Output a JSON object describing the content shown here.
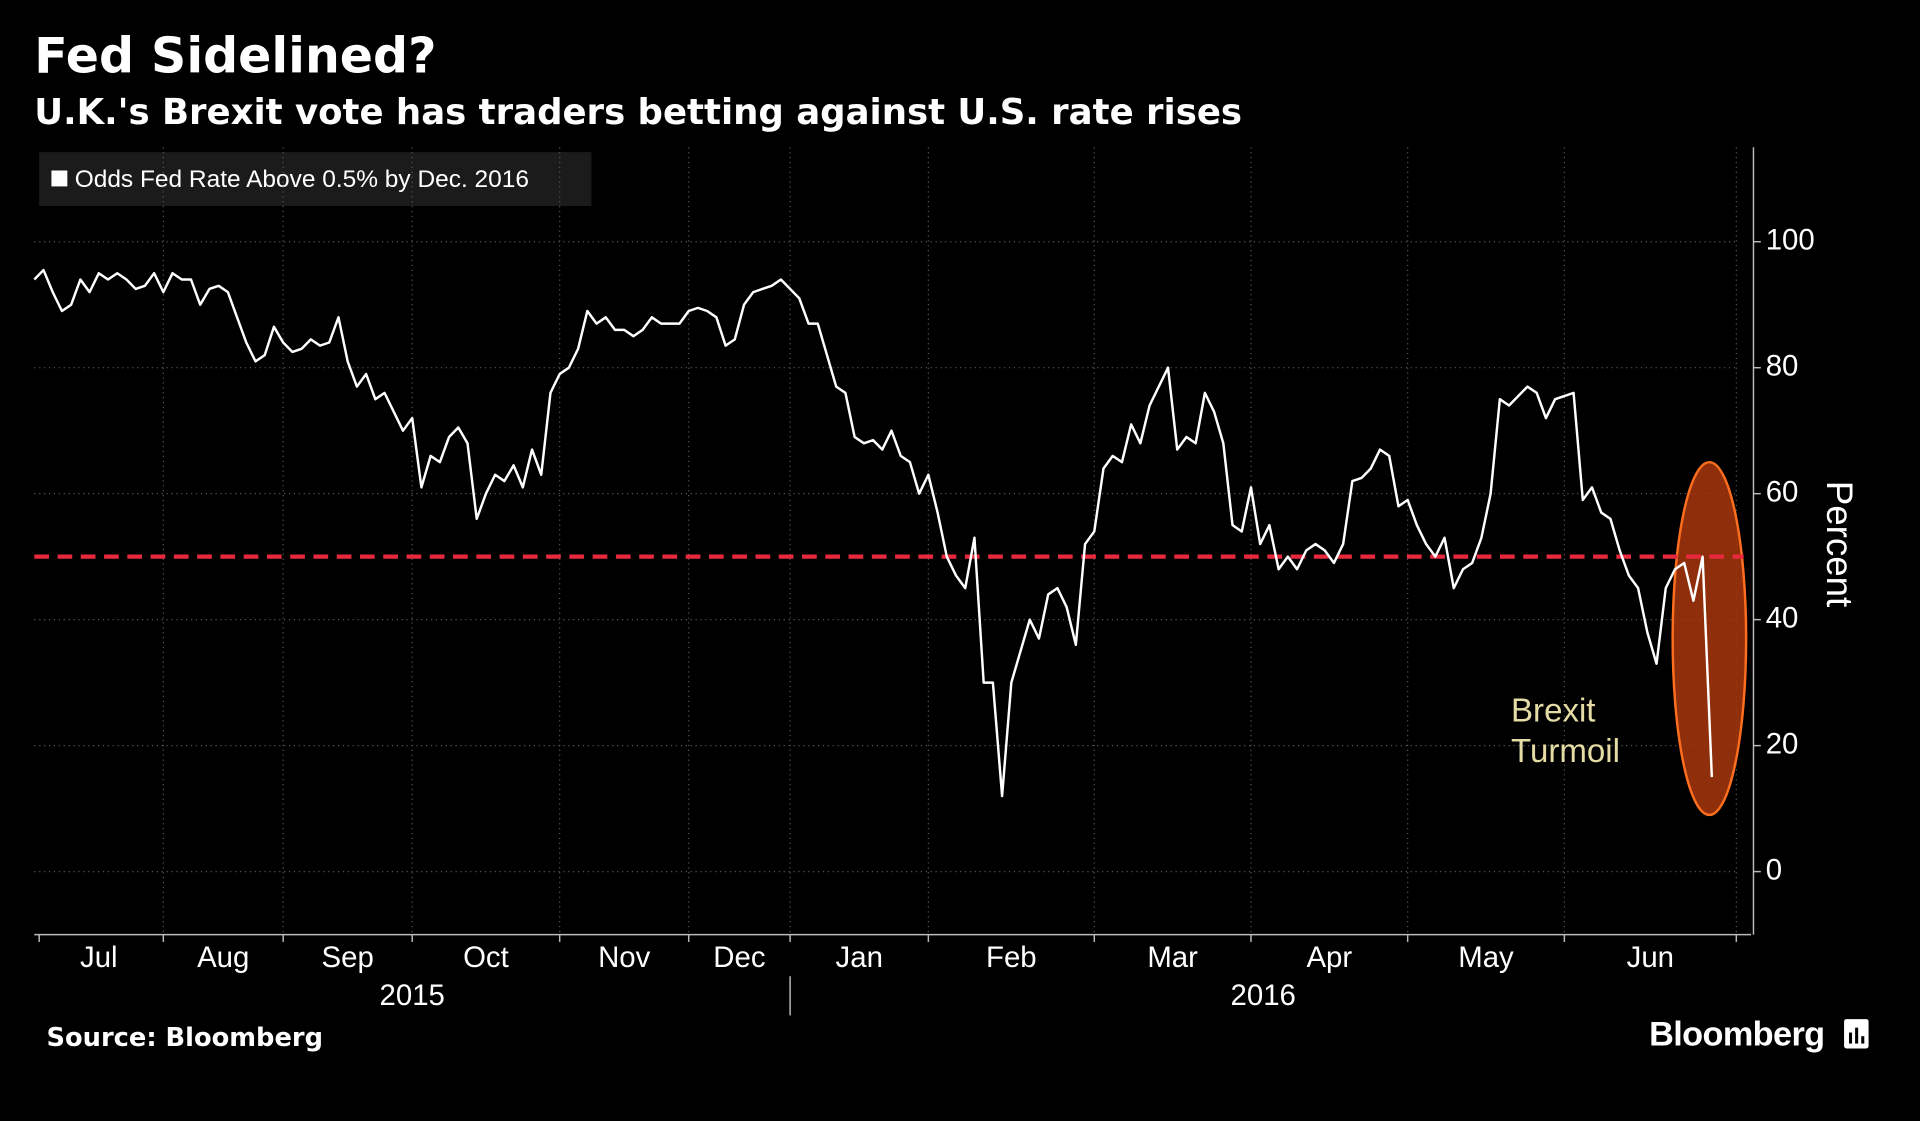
{
  "chart_data": {
    "type": "line",
    "title": "Fed Sidelined?",
    "subtitle": "U.K.'s Brexit vote has traders betting against U.S. rate rises",
    "y_label": "Percent",
    "source": "Source: Bloomberg",
    "logo": "Bloomberg",
    "annotation": [
      "Brexit",
      "Turmoil"
    ],
    "annotation_color": "#e4dca4",
    "years": [
      "2015",
      "2016"
    ],
    "categories": [
      "Jul",
      null,
      null,
      null,
      null,
      null,
      null,
      null,
      null,
      null,
      null,
      null,
      null,
      null,
      "Aug",
      null,
      null,
      null,
      null,
      null,
      null,
      null,
      null,
      null,
      null,
      null,
      null,
      "Sep",
      null,
      null,
      null,
      null,
      null,
      null,
      null,
      null,
      null,
      null,
      null,
      null,
      null,
      "Oct",
      null,
      null,
      null,
      null,
      null,
      null,
      null,
      null,
      null,
      null,
      null,
      null,
      null,
      null,
      null,
      "Nov",
      null,
      null,
      null,
      null,
      null,
      null,
      null,
      null,
      null,
      null,
      null,
      null,
      null,
      "Dec",
      null,
      null,
      null,
      null,
      null,
      null,
      null,
      null,
      null,
      null,
      "Jan",
      null,
      null,
      null,
      null,
      null,
      null,
      null,
      null,
      null,
      null,
      null,
      null,
      null,
      null,
      "Feb",
      null,
      null,
      null,
      null,
      null,
      null,
      null,
      null,
      null,
      null,
      null,
      null,
      null,
      null,
      null,
      null,
      null,
      "Mar",
      null,
      null,
      null,
      null,
      null,
      null,
      null,
      null,
      null,
      null,
      null,
      null,
      null,
      null,
      null,
      null,
      "Apr",
      null,
      null,
      null,
      null,
      null,
      null,
      null,
      null,
      null,
      null,
      null,
      null,
      null,
      null,
      null,
      null,
      "May",
      null,
      null,
      null,
      null,
      null,
      null,
      null,
      null,
      null,
      null,
      null,
      null,
      null,
      null,
      null,
      null,
      "Jun",
      null,
      null,
      null,
      null,
      null,
      null,
      null,
      null,
      null,
      null,
      null,
      null,
      null,
      null,
      null,
      null
    ],
    "series": [
      {
        "name": "Odds Fed Rate Above 0.5% by Dec. 2016",
        "color": "#ffffff",
        "values": [
          94,
          95.5,
          92,
          89,
          90,
          94,
          92,
          95,
          94,
          95,
          94,
          92.5,
          93,
          95,
          92,
          95,
          94,
          94,
          90,
          92.5,
          93,
          92,
          88,
          84,
          81,
          82,
          86.5,
          84,
          82.5,
          83,
          84.5,
          83.5,
          84,
          88,
          81,
          77,
          79,
          75,
          76,
          73,
          70,
          72,
          61,
          66,
          65,
          69,
          70.5,
          68,
          56,
          60,
          63,
          62,
          64.5,
          61,
          67,
          63,
          76,
          79,
          80,
          83,
          89,
          87,
          88,
          86,
          86,
          85,
          86,
          88,
          87,
          87,
          87,
          89,
          89.5,
          89,
          88,
          83.5,
          84.5,
          90,
          92,
          92.5,
          93,
          94,
          92.5,
          91,
          87,
          87,
          82,
          77,
          76,
          69,
          68,
          68.5,
          67,
          70,
          66,
          65,
          60,
          63,
          57,
          50,
          47,
          45,
          53,
          30,
          30,
          12,
          30,
          35,
          40,
          37,
          44,
          45,
          42,
          36,
          52,
          54,
          64,
          66,
          65,
          71,
          68,
          74,
          77,
          80,
          67,
          69,
          68,
          76,
          73,
          68,
          55,
          54,
          61,
          52,
          55,
          48,
          50,
          48,
          51,
          52,
          51,
          49,
          52,
          62,
          62.5,
          64,
          67,
          66,
          58,
          59,
          55,
          52,
          50,
          53,
          45,
          48,
          49,
          53,
          60,
          75,
          74,
          75.5,
          77,
          76,
          72,
          75,
          75.5,
          76,
          59,
          61,
          57,
          56,
          51,
          47,
          45,
          38,
          33,
          45,
          48,
          49,
          43,
          50,
          15
        ]
      }
    ],
    "reference_line": {
      "value": 50,
      "color": "#e8283c"
    },
    "ylim": [
      -10,
      115
    ],
    "yticks": [
      0,
      20,
      40,
      60,
      80,
      100
    ],
    "grid": true
  }
}
